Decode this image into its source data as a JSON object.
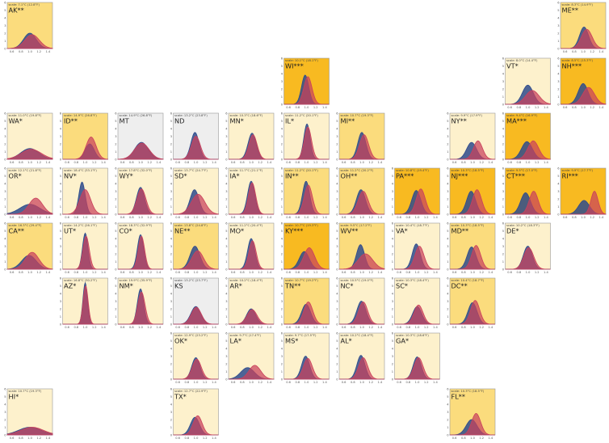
{
  "chart_data": {
    "type": "area",
    "x_ticks": [
      "0.6",
      "0.8",
      "1.0",
      "1.2",
      "1.4"
    ],
    "xlim": [
      0.5,
      1.5
    ],
    "y_ticks": [
      "0",
      "1",
      "2",
      "3",
      "4",
      "5",
      "6"
    ],
    "ylim": [
      0,
      6
    ],
    "colors": {
      "light": "#fdf1cc",
      "medium": "#fbdc7d",
      "strong": "#f8ba21",
      "grey": "#eeeeee",
      "blue_series": "#2e4b8c",
      "red_series": "#c9415c"
    },
    "panels": [
      {
        "state": "AK**",
        "scale": "scale: 7.1°C (12.8°F)",
        "col": 0,
        "row": 0,
        "shade": "medium",
        "b": [
          1.0,
          0.14,
          2.0
        ],
        "r": [
          1.05,
          0.16,
          1.8
        ]
      },
      {
        "state": "ME**",
        "scale": "scale: 8.3°C (14.9°F)",
        "col": 10,
        "row": 0,
        "shade": "medium",
        "b": [
          1.02,
          0.1,
          2.8
        ],
        "r": [
          1.08,
          0.12,
          2.5
        ]
      },
      {
        "state": "WI***",
        "scale": "scale: 10.1°C (18.1°F)",
        "col": 5,
        "row": 1,
        "shade": "strong",
        "b": [
          0.97,
          0.08,
          3.8
        ],
        "r": [
          1.03,
          0.09,
          3.6
        ]
      },
      {
        "state": "VT*",
        "scale": "scale: 8.0°C (14.4°F)",
        "col": 9,
        "row": 1,
        "shade": "light",
        "b": [
          1.0,
          0.12,
          2.5
        ],
        "r": [
          1.1,
          0.15,
          1.8
        ]
      },
      {
        "state": "NH***",
        "scale": "scale: 8.5°C (15.3°F)",
        "col": 10,
        "row": 1,
        "shade": "strong",
        "b": [
          1.0,
          0.11,
          2.7
        ],
        "r": [
          1.12,
          0.13,
          2.2
        ]
      },
      {
        "state": "WA*",
        "scale": "scale: 11.0°C (19.8°F)",
        "col": 0,
        "row": 2,
        "shade": "light",
        "b": [
          1.0,
          0.2,
          1.4
        ],
        "r": [
          1.03,
          0.22,
          1.3
        ]
      },
      {
        "state": "ID**",
        "scale": "scale: 14.9°C (26.8°F)",
        "col": 1,
        "row": 2,
        "shade": "medium",
        "b": [
          1.1,
          0.1,
          2.0
        ],
        "r": [
          1.13,
          0.11,
          2.9
        ]
      },
      {
        "state": "MT",
        "scale": "scale: 14.9°C (26.8°F)",
        "col": 2,
        "row": 2,
        "shade": "grey",
        "b": [
          1.02,
          0.15,
          2.2
        ],
        "r": [
          1.03,
          0.16,
          2.1
        ]
      },
      {
        "state": "ND",
        "scale": "scale: 13.2°C (23.8°F)",
        "col": 3,
        "row": 2,
        "shade": "grey",
        "b": [
          0.98,
          0.09,
          3.5
        ],
        "r": [
          1.0,
          0.1,
          3.0
        ]
      },
      {
        "state": "MN*",
        "scale": "scale: 10.3°C (18.6°F)",
        "col": 4,
        "row": 2,
        "shade": "light",
        "b": [
          1.02,
          0.09,
          3.4
        ],
        "r": [
          1.04,
          0.09,
          3.2
        ]
      },
      {
        "state": "IL*",
        "scale": "scale: 11.2°C (20.1°F)",
        "col": 5,
        "row": 2,
        "shade": "light",
        "b": [
          1.01,
          0.07,
          4.6
        ],
        "r": [
          1.03,
          0.08,
          4.2
        ]
      },
      {
        "state": "MI**",
        "scale": "scale: 10.7°C (19.3°F)",
        "col": 6,
        "row": 2,
        "shade": "medium",
        "b": [
          1.0,
          0.09,
          3.5
        ],
        "r": [
          1.05,
          0.1,
          3.2
        ]
      },
      {
        "state": "NY**",
        "scale": "scale: 9.9°C (17.9°F)",
        "col": 8,
        "row": 2,
        "shade": "light",
        "b": [
          0.98,
          0.11,
          2.2
        ],
        "r": [
          1.12,
          0.1,
          2.4
        ]
      },
      {
        "state": "MA***",
        "scale": "scale: 9.4°C (16.9°F)",
        "col": 9,
        "row": 2,
        "shade": "strong",
        "b": [
          0.98,
          0.12,
          2.3
        ],
        "r": [
          1.12,
          0.12,
          2.4
        ]
      },
      {
        "state": "OR*",
        "scale": "scale: 12.1°C (21.8°F)",
        "col": 0,
        "row": 3,
        "shade": "light",
        "b": [
          1.0,
          0.22,
          1.3
        ],
        "r": [
          1.13,
          0.15,
          2.1
        ]
      },
      {
        "state": "NV*",
        "scale": "scale: 18.4°C (33.1°F)",
        "col": 1,
        "row": 3,
        "shade": "light",
        "b": [
          0.93,
          0.07,
          4.2
        ],
        "r": [
          1.0,
          0.12,
          3.2
        ]
      },
      {
        "state": "WY*",
        "scale": "scale: 17.8°C (32.0°F)",
        "col": 2,
        "row": 3,
        "shade": "light",
        "b": [
          1.0,
          0.09,
          3.5
        ],
        "r": [
          1.02,
          0.1,
          3.3
        ]
      },
      {
        "state": "SD*",
        "scale": "scale: 13.7°C (24.7°F)",
        "col": 3,
        "row": 3,
        "shade": "light",
        "b": [
          0.97,
          0.1,
          3.2
        ],
        "r": [
          1.05,
          0.15,
          2.6
        ]
      },
      {
        "state": "IA*",
        "scale": "scale: 11.7°C (21.1°F)",
        "col": 4,
        "row": 3,
        "shade": "light",
        "b": [
          1.0,
          0.08,
          4.3
        ],
        "r": [
          1.02,
          0.08,
          4.1
        ]
      },
      {
        "state": "IN**",
        "scale": "scale: 11.2°C (20.1°F)",
        "col": 5,
        "row": 3,
        "shade": "medium",
        "b": [
          0.99,
          0.08,
          4.3
        ],
        "r": [
          1.04,
          0.09,
          3.8
        ]
      },
      {
        "state": "OH**",
        "scale": "scale: 11.2°C (20.2°F)",
        "col": 6,
        "row": 3,
        "shade": "medium",
        "b": [
          0.98,
          0.1,
          3.2
        ],
        "r": [
          1.03,
          0.11,
          3.0
        ]
      },
      {
        "state": "PA***",
        "scale": "scale: 10.8°C (19.4°F)",
        "col": 7,
        "row": 3,
        "shade": "strong",
        "b": [
          0.98,
          0.1,
          3.1
        ],
        "r": [
          1.08,
          0.1,
          3.3
        ]
      },
      {
        "state": "NJ***",
        "scale": "scale: 10.3°C (18.5°F)",
        "col": 8,
        "row": 3,
        "shade": "strong",
        "b": [
          0.97,
          0.1,
          3.0
        ],
        "r": [
          1.1,
          0.1,
          3.2
        ]
      },
      {
        "state": "CT***",
        "scale": "scale: 9.5°C (17.0°F)",
        "col": 9,
        "row": 3,
        "shade": "strong",
        "b": [
          0.95,
          0.11,
          2.8
        ],
        "r": [
          1.13,
          0.1,
          3.0
        ]
      },
      {
        "state": "RI***",
        "scale": "scale: 9.9°C (17.7°F)",
        "col": 10,
        "row": 3,
        "shade": "strong",
        "b": [
          1.02,
          0.12,
          1.8
        ],
        "r": [
          1.25,
          0.08,
          3.0
        ]
      },
      {
        "state": "CA**",
        "scale": "scale: 16.3°C (29.4°F)",
        "col": 0,
        "row": 4,
        "shade": "medium",
        "b": [
          0.98,
          0.16,
          1.8
        ],
        "r": [
          1.05,
          0.15,
          2.2
        ]
      },
      {
        "state": "UT*",
        "scale": "scale: 14.2°C (26.1°F)",
        "col": 1,
        "row": 4,
        "shade": "light",
        "b": [
          1.0,
          0.06,
          4.7
        ],
        "r": [
          1.02,
          0.07,
          4.3
        ]
      },
      {
        "state": "CO*",
        "scale": "scale: 18.3°C (32.9°F)",
        "col": 2,
        "row": 4,
        "shade": "light",
        "b": [
          1.0,
          0.07,
          4.5
        ],
        "r": [
          1.02,
          0.07,
          4.3
        ]
      },
      {
        "state": "NE**",
        "scale": "scale: 13.8°C (24.8°F)",
        "col": 3,
        "row": 4,
        "shade": "medium",
        "b": [
          0.98,
          0.11,
          3.0
        ],
        "r": [
          1.04,
          0.13,
          2.4
        ]
      },
      {
        "state": "MO*",
        "scale": "scale: 11.2°C (20.4°F)",
        "col": 4,
        "row": 4,
        "shade": "light",
        "b": [
          1.0,
          0.08,
          4.0
        ],
        "r": [
          1.03,
          0.08,
          3.7
        ]
      },
      {
        "state": "KY***",
        "scale": "scale: 10.7°C (19.3°F)",
        "col": 5,
        "row": 4,
        "shade": "strong",
        "b": [
          0.95,
          0.11,
          2.3
        ],
        "r": [
          1.06,
          0.12,
          2.8
        ]
      },
      {
        "state": "WV**",
        "scale": "scale: 9.5°C (17.2°F)",
        "col": 6,
        "row": 4,
        "shade": "medium",
        "b": [
          0.97,
          0.09,
          3.2
        ],
        "r": [
          1.08,
          0.16,
          2.0
        ]
      },
      {
        "state": "VA*",
        "scale": "scale: 10.4°C (18.7°F)",
        "col": 7,
        "row": 4,
        "shade": "light",
        "b": [
          0.98,
          0.09,
          3.3
        ],
        "r": [
          1.05,
          0.1,
          3.0
        ]
      },
      {
        "state": "MD**",
        "scale": "scale: 10.3°C (18.5°F)",
        "col": 8,
        "row": 4,
        "shade": "medium",
        "b": [
          0.98,
          0.1,
          2.9
        ],
        "r": [
          1.08,
          0.1,
          3.1
        ]
      },
      {
        "state": "DE*",
        "scale": "scale: 10.2°C (18.3°F)",
        "col": 9,
        "row": 4,
        "shade": "light",
        "b": [
          1.0,
          0.1,
          3.0
        ],
        "r": [
          1.02,
          0.11,
          2.8
        ]
      },
      {
        "state": "AZ*",
        "scale": "scale: 16.8°C (30.2°F)",
        "col": 1,
        "row": 5,
        "shade": "light",
        "b": [
          1.0,
          0.05,
          5.4
        ],
        "r": [
          1.01,
          0.055,
          5.0
        ]
      },
      {
        "state": "NM*",
        "scale": "scale: 19.9°C (35.9°F)",
        "col": 2,
        "row": 5,
        "shade": "light",
        "b": [
          1.0,
          0.07,
          4.6
        ],
        "r": [
          1.02,
          0.08,
          4.2
        ]
      },
      {
        "state": "KS",
        "scale": "scale: 13.2°C (23.7°F)",
        "col": 3,
        "row": 5,
        "shade": "grey",
        "b": [
          1.0,
          0.11,
          2.3
        ],
        "r": [
          1.01,
          0.11,
          2.2
        ]
      },
      {
        "state": "AR*",
        "scale": "scale: 10.2°C (18.4°F)",
        "col": 4,
        "row": 5,
        "shade": "light",
        "b": [
          1.0,
          0.1,
          2.0
        ],
        "r": [
          1.02,
          0.11,
          1.9
        ]
      },
      {
        "state": "TN**",
        "scale": "scale: 10.7°C (19.2°F)",
        "col": 5,
        "row": 5,
        "shade": "medium",
        "b": [
          0.99,
          0.1,
          2.6
        ],
        "r": [
          1.04,
          0.1,
          2.9
        ]
      },
      {
        "state": "NC*",
        "scale": "scale: 10.5°C (19.0°F)",
        "col": 6,
        "row": 5,
        "shade": "light",
        "b": [
          0.99,
          0.1,
          3.0
        ],
        "r": [
          1.03,
          0.1,
          2.9
        ]
      },
      {
        "state": "SC*",
        "scale": "scale: 10.3°C (18.4°F)",
        "col": 7,
        "row": 5,
        "shade": "light",
        "b": [
          1.0,
          0.1,
          2.3
        ],
        "r": [
          1.03,
          0.1,
          2.5
        ]
      },
      {
        "state": "DC**",
        "scale": "scale: 10.4°C (18.7°F)",
        "col": 8,
        "row": 5,
        "shade": "medium",
        "b": [
          1.0,
          0.1,
          2.8
        ],
        "r": [
          1.06,
          0.1,
          3.1
        ]
      },
      {
        "state": "OK*",
        "scale": "scale: 12.9°C (23.2°F)",
        "col": 3,
        "row": 6,
        "shade": "light",
        "b": [
          1.0,
          0.09,
          2.8
        ],
        "r": [
          1.02,
          0.1,
          2.6
        ]
      },
      {
        "state": "LA*",
        "scale": "scale: 9.7°C (17.4°F)",
        "col": 4,
        "row": 6,
        "shade": "light",
        "b": [
          0.92,
          0.15,
          1.5
        ],
        "r": [
          1.08,
          0.13,
          1.8
        ]
      },
      {
        "state": "MS*",
        "scale": "scale: 9.7°C (17.5°F)",
        "col": 5,
        "row": 6,
        "shade": "light",
        "b": [
          0.98,
          0.09,
          3.0
        ],
        "r": [
          1.03,
          0.1,
          2.7
        ]
      },
      {
        "state": "AL*",
        "scale": "scale: 10.2°C (18.4°F)",
        "col": 6,
        "row": 6,
        "shade": "light",
        "b": [
          0.98,
          0.09,
          3.1
        ],
        "r": [
          1.03,
          0.1,
          2.8
        ]
      },
      {
        "state": "GA*",
        "scale": "scale: 10.3°C (18.6°F)",
        "col": 7,
        "row": 6,
        "shade": "light",
        "b": [
          1.0,
          0.09,
          2.9
        ],
        "r": [
          1.03,
          0.1,
          2.8
        ]
      },
      {
        "state": "HI*",
        "scale": "scale: 10.7°C (19.3°F)",
        "col": 0,
        "row": 7,
        "shade": "light",
        "b": [
          1.0,
          0.25,
          1.0
        ],
        "r": [
          1.05,
          0.25,
          1.0
        ]
      },
      {
        "state": "TX*",
        "scale": "scale: 12.7°C (22.9°F)",
        "col": 3,
        "row": 7,
        "shade": "light",
        "b": [
          0.98,
          0.1,
          2.3
        ],
        "r": [
          1.04,
          0.1,
          2.5
        ]
      },
      {
        "state": "FL**",
        "scale": "scale: 10.3°C (18.5°F)",
        "col": 8,
        "row": 7,
        "shade": "medium",
        "b": [
          0.98,
          0.12,
          2.0
        ],
        "r": [
          1.08,
          0.1,
          2.8
        ]
      }
    ]
  }
}
